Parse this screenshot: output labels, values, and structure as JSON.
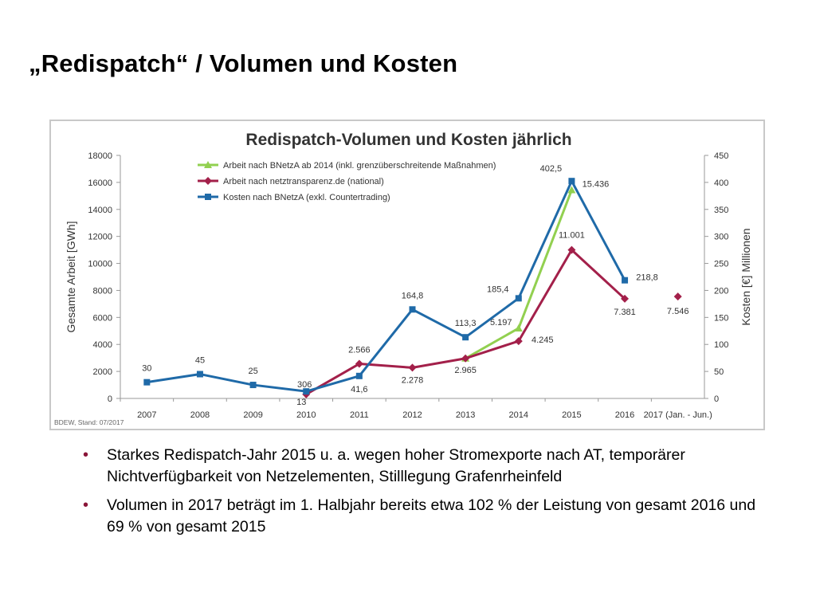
{
  "slide": {
    "title": "„Redispatch“ / Volumen und Kosten",
    "bullets": [
      "Starkes Redispatch-Jahr 2015 u. a. wegen hoher Stromexporte nach AT, temporärer Nichtverfügbarkeit von Netzelementen, Stilllegung Grafenrheinfeld",
      "Volumen in 2017 beträgt im 1. Halbjahr bereits etwa 102 % der Leistung von gesamt 2016 und 69 % von gesamt 2015"
    ],
    "bullet_color": "#8a1538"
  },
  "chart_data": {
    "type": "line",
    "title": "Redispatch-Volumen und Kosten jährlich",
    "source": "BDEW, Stand: 07/2017",
    "categories": [
      "2007",
      "2008",
      "2009",
      "2010",
      "2011",
      "2012",
      "2013",
      "2014",
      "2015",
      "2016",
      "2017 (Jan. - Jun.)"
    ],
    "ylabel": "Gesamte Arbeit [GWh]",
    "ylabel_right": "Kosten [€] Millionen",
    "ylim": [
      0,
      18000
    ],
    "ylim_right": [
      0,
      450
    ],
    "yticks": [
      "0",
      "2000",
      "4000",
      "6000",
      "8000",
      "10000",
      "12000",
      "14000",
      "16000",
      "18000"
    ],
    "yticks_right": [
      "0",
      "50",
      "100",
      "150",
      "200",
      "250",
      "300",
      "350",
      "400",
      "450"
    ],
    "legend_position": "top-left",
    "grid": false,
    "series": [
      {
        "name": "Arbeit nach BNetzA ab 2014 (inkl. grenzüberschreitende Maßnahmen)",
        "axis": "left",
        "color": "#92d050",
        "marker": "triangle",
        "values": [
          null,
          null,
          null,
          null,
          null,
          null,
          2965,
          5197,
          15436,
          null,
          null
        ],
        "labels": [
          null,
          null,
          null,
          null,
          null,
          null,
          null,
          "5.197",
          "15.436",
          null,
          null
        ]
      },
      {
        "name": "Arbeit nach netztransparenz.de (national)",
        "axis": "left",
        "color": "#a3204a",
        "marker": "diamond",
        "values": [
          null,
          null,
          null,
          306,
          2566,
          2278,
          2965,
          4245,
          11001,
          7381,
          7546
        ],
        "labels": [
          null,
          null,
          null,
          "306",
          "2.566",
          "2.278",
          "2.965",
          "4.245",
          "11.001",
          "7.381",
          "7.546"
        ],
        "break_before": [
          10
        ]
      },
      {
        "name": "Kosten nach BNetzA (exkl. Countertrading)",
        "axis": "right",
        "color": "#1f6aa8",
        "marker": "square",
        "values": [
          30,
          45,
          25,
          13,
          41.6,
          164.8,
          113.3,
          185.4,
          402.5,
          218.8,
          null
        ],
        "labels": [
          "30",
          "45",
          "25",
          "13",
          "41,6",
          "164,8",
          "113,3",
          "185,4",
          "402,5",
          "218,8",
          null
        ]
      }
    ]
  }
}
